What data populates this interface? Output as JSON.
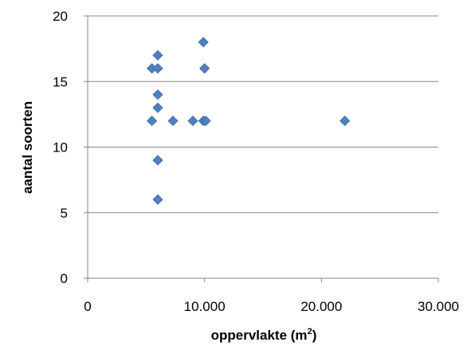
{
  "chart_data": {
    "type": "scatter",
    "xlabel": "oppervlakte (m",
    "xlabel_sup": "2",
    "xlabel_end": ")",
    "ylabel": "aantal soorten",
    "xlim": [
      0,
      30000
    ],
    "ylim": [
      0,
      20
    ],
    "x_ticks": [
      0,
      10000,
      20000,
      30000
    ],
    "x_tick_labels": [
      "0",
      "10.000",
      "20.000",
      "30.000"
    ],
    "y_ticks": [
      0,
      5,
      10,
      15,
      20
    ],
    "y_tick_labels": [
      "0",
      "5",
      "10",
      "15",
      "20"
    ],
    "grid": "horizontal",
    "marker": "diamond",
    "marker_color": "#4f81bd",
    "points": [
      {
        "x": 5500,
        "y": 16
      },
      {
        "x": 6000,
        "y": 16
      },
      {
        "x": 6000,
        "y": 17
      },
      {
        "x": 6000,
        "y": 14
      },
      {
        "x": 6000,
        "y": 13
      },
      {
        "x": 5500,
        "y": 12
      },
      {
        "x": 6000,
        "y": 9
      },
      {
        "x": 6000,
        "y": 6
      },
      {
        "x": 7300,
        "y": 12
      },
      {
        "x": 9000,
        "y": 12
      },
      {
        "x": 9900,
        "y": 18
      },
      {
        "x": 10000,
        "y": 16
      },
      {
        "x": 9900,
        "y": 12
      },
      {
        "x": 10100,
        "y": 12
      },
      {
        "x": 22000,
        "y": 12
      }
    ]
  }
}
